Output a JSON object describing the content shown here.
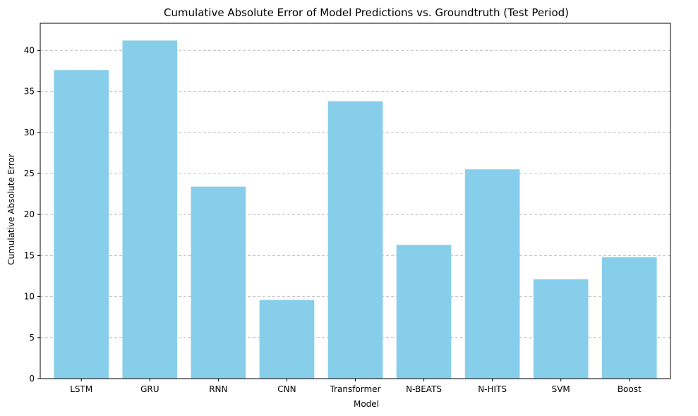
{
  "chart_data": {
    "type": "bar",
    "title": "Cumulative Absolute Error of Model Predictions vs. Groundtruth (Test Period)",
    "xlabel": "Model",
    "ylabel": "Cumulative Absolute Error",
    "categories": [
      "LSTM",
      "GRU",
      "RNN",
      "CNN",
      "Transformer",
      "N-BEATS",
      "N-HITS",
      "SVM",
      "Boost"
    ],
    "values": [
      37.6,
      41.2,
      23.4,
      9.6,
      33.8,
      16.3,
      25.5,
      12.1,
      14.8
    ],
    "ylim": [
      0,
      43.3
    ],
    "yticks": [
      0,
      5,
      10,
      15,
      20,
      25,
      30,
      35,
      40
    ],
    "ytick_labels": [
      "0",
      "5",
      "10",
      "15",
      "20",
      "25",
      "30",
      "35",
      "40"
    ],
    "grid": "y-dashed",
    "bar_color": "#87ceeb",
    "grid_color": "#c0c0c0"
  }
}
